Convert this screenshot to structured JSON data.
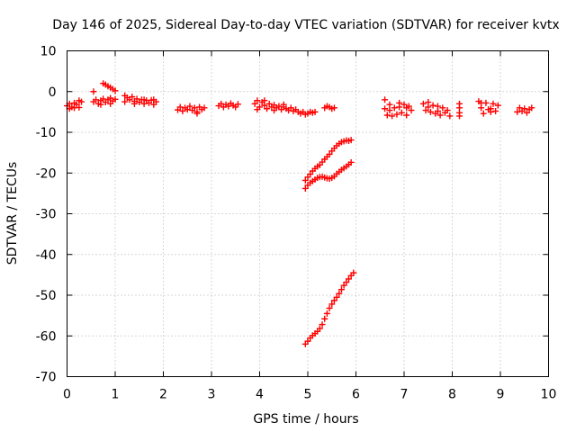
{
  "chart_data": {
    "type": "scatter",
    "title": "Day 146 of 2025, Sidereal Day-to-day VTEC variation (SDTVAR) for receiver kvtx",
    "xlabel": "GPS time / hours",
    "ylabel": "SDTVAR / TECUs",
    "xlim": [
      0,
      10
    ],
    "ylim": [
      -70,
      10
    ],
    "x_ticks": [
      "0",
      "1",
      "2",
      "3",
      "4",
      "5",
      "6",
      "7",
      "8",
      "9",
      "10"
    ],
    "y_ticks": [
      "10",
      "0",
      "-10",
      "-20",
      "-30",
      "-40",
      "-50",
      "-60",
      "-70"
    ],
    "grid": true,
    "marker": "+",
    "color": "#ff0000",
    "series": [
      {
        "points": [
          [
            0.0,
            -3.5
          ],
          [
            0.05,
            -3.0
          ],
          [
            0.1,
            -3.8
          ],
          [
            0.15,
            -2.8
          ],
          [
            0.2,
            -3.2
          ],
          [
            0.25,
            -3.9
          ],
          [
            0.3,
            -2.5
          ],
          [
            0.05,
            -4.2
          ],
          [
            0.15,
            -4.0
          ],
          [
            0.25,
            -2.2
          ],
          [
            0.55,
            0.0
          ],
          [
            0.55,
            -2.5
          ],
          [
            0.6,
            -2.0
          ],
          [
            0.65,
            -3.0
          ],
          [
            0.7,
            -2.2
          ],
          [
            0.75,
            -1.8
          ],
          [
            0.8,
            -2.6
          ],
          [
            0.85,
            -2.0
          ],
          [
            0.9,
            -3.0
          ],
          [
            0.95,
            -2.3
          ],
          [
            1.0,
            -1.9
          ],
          [
            0.7,
            -3.2
          ],
          [
            0.9,
            -1.6
          ],
          [
            0.75,
            2.0
          ],
          [
            0.8,
            1.7
          ],
          [
            0.85,
            1.3
          ],
          [
            0.9,
            1.0
          ],
          [
            0.95,
            0.6
          ],
          [
            1.0,
            0.2
          ],
          [
            1.2,
            -1.0
          ],
          [
            1.25,
            -1.5
          ],
          [
            1.3,
            -2.0
          ],
          [
            1.35,
            -1.3
          ],
          [
            1.4,
            -2.4
          ],
          [
            1.45,
            -1.8
          ],
          [
            1.5,
            -2.6
          ],
          [
            1.55,
            -2.0
          ],
          [
            1.6,
            -3.0
          ],
          [
            1.65,
            -2.2
          ],
          [
            1.7,
            -2.8
          ],
          [
            1.75,
            -2.1
          ],
          [
            1.8,
            -3.2
          ],
          [
            1.85,
            -2.5
          ],
          [
            1.2,
            -2.5
          ],
          [
            1.4,
            -3.0
          ],
          [
            1.6,
            -2.0
          ],
          [
            1.8,
            -2.0
          ],
          [
            2.3,
            -4.5
          ],
          [
            2.35,
            -3.8
          ],
          [
            2.4,
            -4.8
          ],
          [
            2.45,
            -4.0
          ],
          [
            2.5,
            -4.4
          ],
          [
            2.55,
            -3.6
          ],
          [
            2.6,
            -4.6
          ],
          [
            2.65,
            -4.0
          ],
          [
            2.7,
            -5.0
          ],
          [
            2.75,
            -3.8
          ],
          [
            2.8,
            -4.4
          ],
          [
            2.85,
            -4.0
          ],
          [
            2.7,
            -5.4
          ],
          [
            3.15,
            -3.5
          ],
          [
            3.2,
            -3.0
          ],
          [
            3.25,
            -3.8
          ],
          [
            3.3,
            -3.2
          ],
          [
            3.35,
            -3.6
          ],
          [
            3.4,
            -2.9
          ],
          [
            3.45,
            -3.4
          ],
          [
            3.5,
            -3.8
          ],
          [
            3.55,
            -3.1
          ],
          [
            3.9,
            -3.0
          ],
          [
            3.95,
            -2.2
          ],
          [
            4.0,
            -3.8
          ],
          [
            4.05,
            -2.6
          ],
          [
            4.1,
            -3.4
          ],
          [
            4.15,
            -4.2
          ],
          [
            4.2,
            -3.0
          ],
          [
            4.25,
            -3.8
          ],
          [
            4.3,
            -3.3
          ],
          [
            4.35,
            -4.0
          ],
          [
            4.4,
            -3.6
          ],
          [
            4.45,
            -4.4
          ],
          [
            4.5,
            -3.8
          ],
          [
            4.55,
            -4.2
          ],
          [
            4.6,
            -4.6
          ],
          [
            4.65,
            -4.0
          ],
          [
            4.7,
            -4.8
          ],
          [
            4.75,
            -4.4
          ],
          [
            4.8,
            -5.0
          ],
          [
            4.85,
            -5.4
          ],
          [
            4.9,
            -5.0
          ],
          [
            4.95,
            -5.6
          ],
          [
            5.0,
            -5.4
          ],
          [
            5.05,
            -5.0
          ],
          [
            5.1,
            -5.2
          ],
          [
            5.15,
            -5.0
          ],
          [
            3.95,
            -4.4
          ],
          [
            4.1,
            -2.2
          ],
          [
            4.3,
            -4.6
          ],
          [
            4.5,
            -3.2
          ],
          [
            5.35,
            -4.0
          ],
          [
            5.4,
            -3.6
          ],
          [
            5.45,
            -3.8
          ],
          [
            5.5,
            -4.2
          ],
          [
            5.55,
            -4.0
          ],
          [
            4.95,
            -21.8
          ],
          [
            5.0,
            -21.0
          ],
          [
            5.05,
            -20.3
          ],
          [
            5.1,
            -19.5
          ],
          [
            5.15,
            -18.9
          ],
          [
            5.2,
            -18.4
          ],
          [
            5.25,
            -18.0
          ],
          [
            5.3,
            -17.3
          ],
          [
            5.35,
            -16.6
          ],
          [
            5.4,
            -16.0
          ],
          [
            5.45,
            -15.4
          ],
          [
            5.5,
            -14.6
          ],
          [
            5.55,
            -13.9
          ],
          [
            5.6,
            -13.3
          ],
          [
            5.65,
            -12.8
          ],
          [
            5.7,
            -12.4
          ],
          [
            5.75,
            -12.2
          ],
          [
            5.8,
            -12.0
          ],
          [
            5.85,
            -12.1
          ],
          [
            5.9,
            -11.9
          ],
          [
            4.95,
            -23.8
          ],
          [
            5.0,
            -23.0
          ],
          [
            5.05,
            -22.4
          ],
          [
            5.1,
            -22.0
          ],
          [
            5.15,
            -21.6
          ],
          [
            5.2,
            -21.2
          ],
          [
            5.25,
            -21.0
          ],
          [
            5.3,
            -20.9
          ],
          [
            5.35,
            -21.1
          ],
          [
            5.4,
            -21.3
          ],
          [
            5.45,
            -21.4
          ],
          [
            5.5,
            -21.2
          ],
          [
            5.55,
            -20.8
          ],
          [
            5.6,
            -20.2
          ],
          [
            5.65,
            -19.7
          ],
          [
            5.7,
            -19.2
          ],
          [
            5.75,
            -18.8
          ],
          [
            5.8,
            -18.4
          ],
          [
            5.85,
            -17.9
          ],
          [
            5.9,
            -17.4
          ],
          [
            4.95,
            -62.0
          ],
          [
            5.0,
            -61.3
          ],
          [
            5.05,
            -60.5
          ],
          [
            5.1,
            -59.9
          ],
          [
            5.15,
            -59.4
          ],
          [
            5.2,
            -58.9
          ],
          [
            5.25,
            -58.2
          ],
          [
            5.3,
            -57.2
          ],
          [
            5.35,
            -55.8
          ],
          [
            5.4,
            -54.5
          ],
          [
            5.45,
            -53.2
          ],
          [
            5.5,
            -52.2
          ],
          [
            5.55,
            -51.3
          ],
          [
            5.6,
            -50.5
          ],
          [
            5.65,
            -49.6
          ],
          [
            5.7,
            -48.6
          ],
          [
            5.75,
            -47.6
          ],
          [
            5.8,
            -46.8
          ],
          [
            5.85,
            -46.0
          ],
          [
            5.9,
            -45.2
          ],
          [
            5.95,
            -44.5
          ],
          [
            6.6,
            -2.0
          ],
          [
            6.6,
            -4.2
          ],
          [
            6.65,
            -5.8
          ],
          [
            6.7,
            -4.6
          ],
          [
            6.75,
            -6.0
          ],
          [
            6.8,
            -4.0
          ],
          [
            6.85,
            -5.6
          ],
          [
            6.9,
            -3.8
          ],
          [
            6.95,
            -5.2
          ],
          [
            7.0,
            -3.2
          ],
          [
            7.05,
            -5.8
          ],
          [
            7.1,
            -3.6
          ],
          [
            7.15,
            -4.6
          ],
          [
            6.7,
            -3.2
          ],
          [
            6.9,
            -2.8
          ],
          [
            7.05,
            -4.0
          ],
          [
            7.4,
            -3.0
          ],
          [
            7.45,
            -4.6
          ],
          [
            7.5,
            -2.6
          ],
          [
            7.55,
            -5.0
          ],
          [
            7.6,
            -3.4
          ],
          [
            7.65,
            -5.4
          ],
          [
            7.7,
            -3.6
          ],
          [
            7.75,
            -5.8
          ],
          [
            7.8,
            -4.0
          ],
          [
            7.85,
            -5.2
          ],
          [
            7.9,
            -4.6
          ],
          [
            7.95,
            -6.0
          ],
          [
            7.5,
            -3.8
          ],
          [
            7.7,
            -4.8
          ],
          [
            8.15,
            -3.0
          ],
          [
            8.15,
            -4.0
          ],
          [
            8.15,
            -5.2
          ],
          [
            8.15,
            -6.0
          ],
          [
            8.55,
            -2.4
          ],
          [
            8.6,
            -4.0
          ],
          [
            8.65,
            -5.4
          ],
          [
            8.7,
            -2.8
          ],
          [
            8.75,
            -4.4
          ],
          [
            8.8,
            -5.0
          ],
          [
            8.85,
            -3.0
          ],
          [
            8.9,
            -4.8
          ],
          [
            8.95,
            -3.4
          ],
          [
            8.6,
            -2.8
          ],
          [
            8.8,
            -4.2
          ],
          [
            9.35,
            -5.0
          ],
          [
            9.4,
            -4.0
          ],
          [
            9.45,
            -4.8
          ],
          [
            9.5,
            -4.2
          ],
          [
            9.55,
            -5.2
          ],
          [
            9.6,
            -4.4
          ],
          [
            9.65,
            -4.0
          ]
        ]
      }
    ]
  }
}
